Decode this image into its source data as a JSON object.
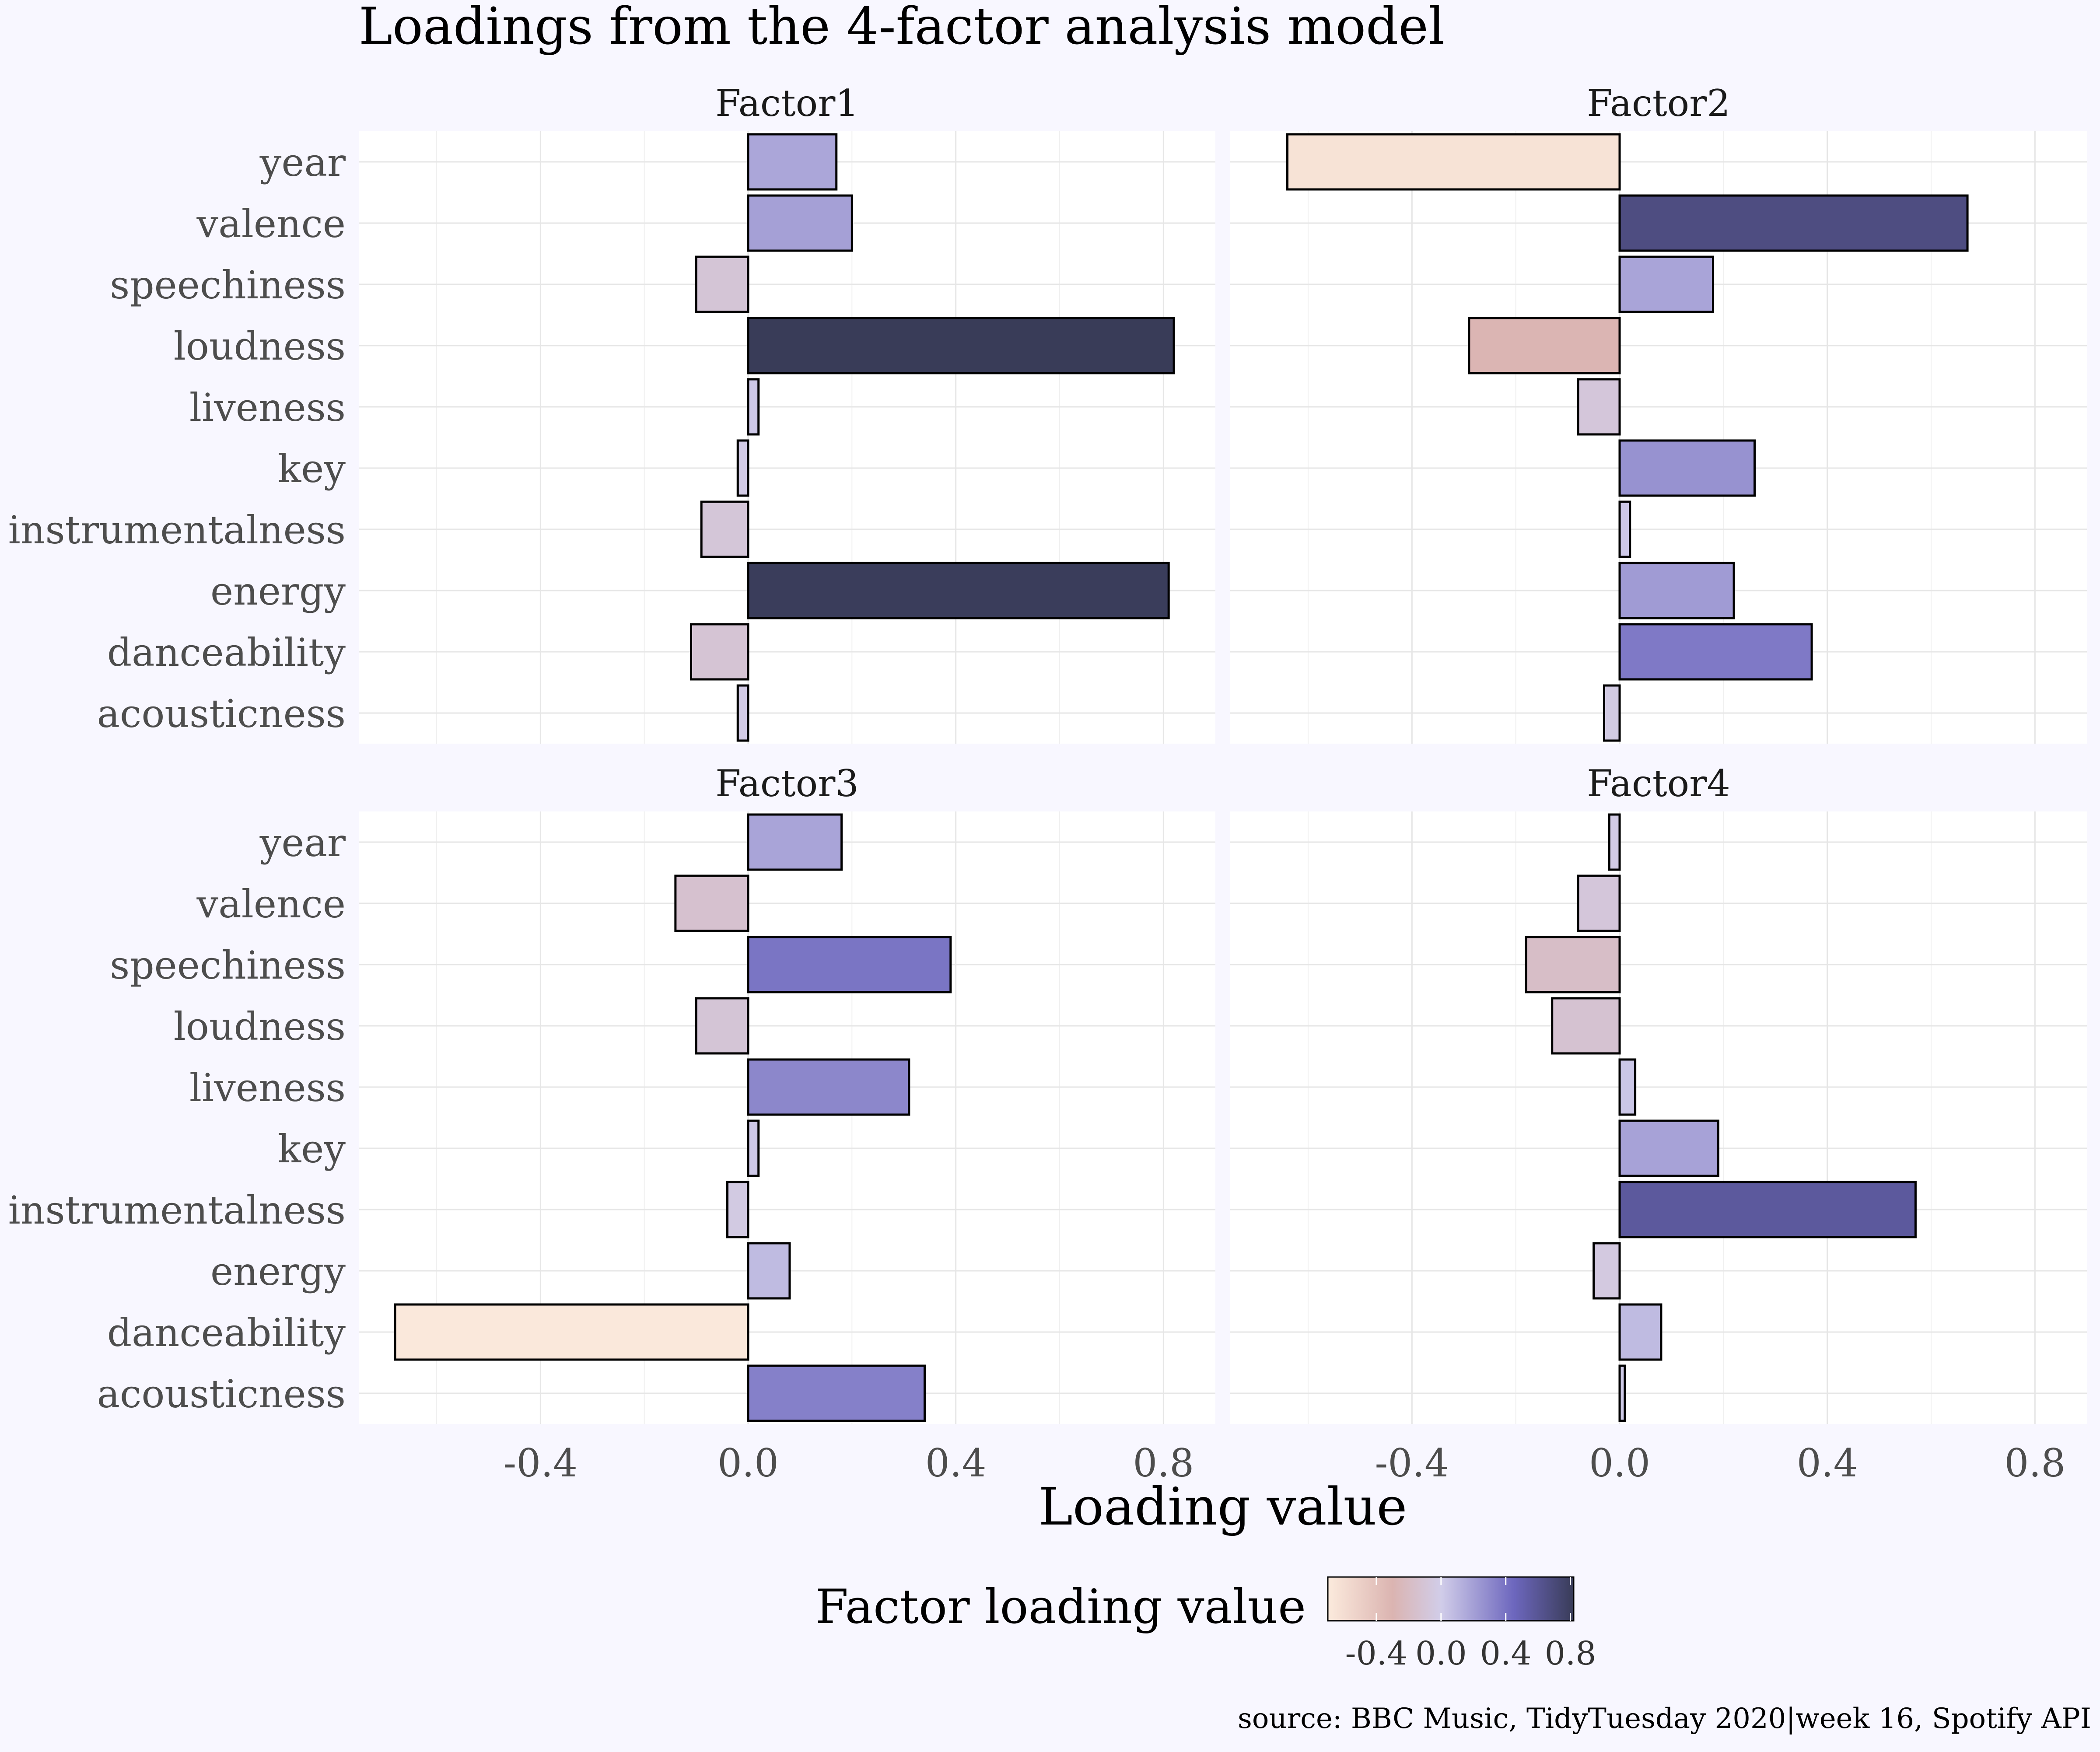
{
  "chart_data": {
    "type": "bar",
    "title": "Loadings from the 4-factor analysis model",
    "xlabel": "Loading value",
    "ylabel": "",
    "caption": "source: BBC Music, TidyTuesday 2020|week 16, Spotify API",
    "orientation": "horizontal",
    "categories": [
      "year",
      "valence",
      "speechiness",
      "loudness",
      "liveness",
      "key",
      "instrumentalness",
      "energy",
      "danceability",
      "acousticness"
    ],
    "xlim": [
      -0.75,
      0.9
    ],
    "x_ticks": [
      -0.4,
      0.0,
      0.4,
      0.8
    ],
    "x_tick_labels": [
      "-0.4",
      "0.0",
      "0.4",
      "0.8"
    ],
    "grid": true,
    "facets": [
      {
        "name": "Factor1",
        "values": [
          0.17,
          0.2,
          -0.1,
          0.82,
          0.02,
          -0.02,
          -0.09,
          0.81,
          -0.11,
          -0.02
        ]
      },
      {
        "name": "Factor2",
        "values": [
          -0.64,
          0.67,
          0.18,
          -0.29,
          -0.08,
          0.26,
          0.02,
          0.22,
          0.37,
          -0.03
        ]
      },
      {
        "name": "Factor3",
        "values": [
          0.18,
          -0.14,
          0.39,
          -0.1,
          0.31,
          0.02,
          -0.04,
          0.08,
          -0.68,
          0.34
        ]
      },
      {
        "name": "Factor4",
        "values": [
          -0.02,
          -0.08,
          -0.18,
          -0.13,
          0.03,
          0.19,
          0.57,
          -0.05,
          0.08,
          0.01
        ]
      }
    ],
    "legend": {
      "title": "Factor loading value",
      "position": "bottom",
      "tick_values": [
        -0.4,
        0.0,
        0.4,
        0.8
      ],
      "tick_labels": [
        "-0.4",
        "0.0",
        "0.4",
        "0.8"
      ],
      "range": [
        -0.7,
        0.82
      ],
      "color_stops": [
        {
          "value": -0.7,
          "color": "#fcebdd"
        },
        {
          "value": -0.3,
          "color": "#dbb4b1"
        },
        {
          "value": 0.0,
          "color": "#d1cde9"
        },
        {
          "value": 0.45,
          "color": "#6d67be"
        },
        {
          "value": 0.82,
          "color": "#393c58"
        }
      ]
    }
  },
  "colors": {
    "background": "#f8f7ff",
    "panel": "#ffffff",
    "grid": "#e6e6e6",
    "bar_outline": "#000000",
    "text": "#4d4d4d",
    "title": "#000000"
  }
}
